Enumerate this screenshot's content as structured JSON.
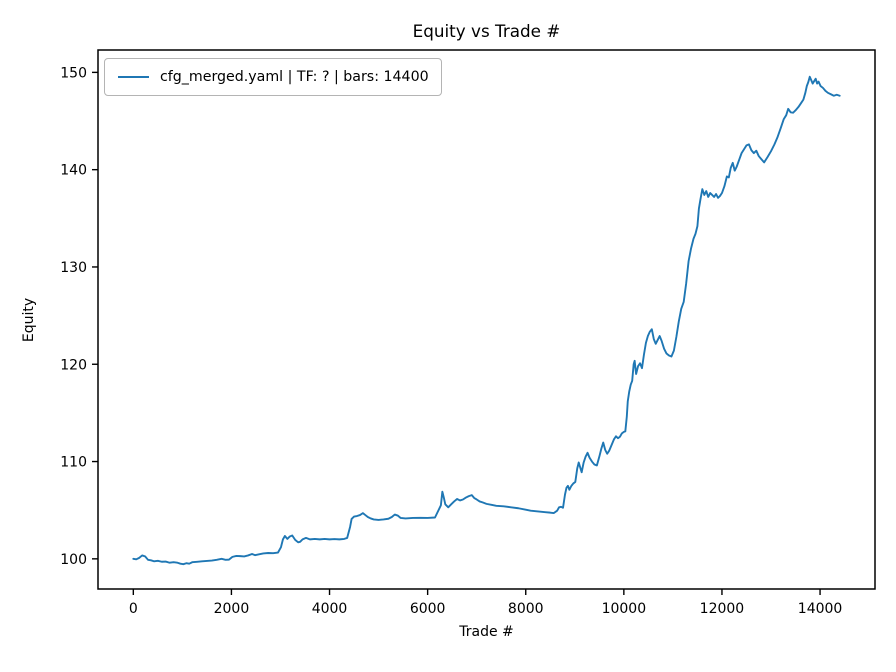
{
  "figure": {
    "background": "#ffffff"
  },
  "chart_data": {
    "type": "line",
    "title": "Equity vs Trade #",
    "xlabel": "Trade #",
    "ylabel": "Equity",
    "grid": false,
    "legend": {
      "position": "upper-left",
      "entries": [
        {
          "label": "cfg_merged.yaml | TF: ? | bars: 14400",
          "color": "#1f77b4"
        }
      ]
    },
    "xlim": [
      -720,
      15120
    ],
    "ylim": [
      96.9,
      152.3
    ],
    "x_ticks": [
      0,
      2000,
      4000,
      6000,
      8000,
      10000,
      12000,
      14000
    ],
    "y_ticks": [
      100,
      110,
      120,
      130,
      140,
      150
    ],
    "axis_color": "#000000",
    "series": [
      {
        "name": "cfg_merged.yaml | TF: ? | bars: 14400",
        "color": "#1f77b4",
        "line_width": 1.9,
        "points": [
          [
            0,
            100.0
          ],
          [
            60,
            99.95
          ],
          [
            120,
            100.1
          ],
          [
            180,
            100.35
          ],
          [
            240,
            100.25
          ],
          [
            300,
            99.9
          ],
          [
            360,
            99.85
          ],
          [
            420,
            99.75
          ],
          [
            500,
            99.8
          ],
          [
            580,
            99.7
          ],
          [
            660,
            99.72
          ],
          [
            740,
            99.6
          ],
          [
            820,
            99.65
          ],
          [
            900,
            99.6
          ],
          [
            960,
            99.5
          ],
          [
            1020,
            99.45
          ],
          [
            1080,
            99.55
          ],
          [
            1140,
            99.5
          ],
          [
            1200,
            99.65
          ],
          [
            1300,
            99.7
          ],
          [
            1400,
            99.75
          ],
          [
            1500,
            99.78
          ],
          [
            1600,
            99.82
          ],
          [
            1700,
            99.9
          ],
          [
            1800,
            100.0
          ],
          [
            1880,
            99.9
          ],
          [
            1950,
            99.92
          ],
          [
            2020,
            100.2
          ],
          [
            2100,
            100.3
          ],
          [
            2180,
            100.28
          ],
          [
            2260,
            100.25
          ],
          [
            2340,
            100.35
          ],
          [
            2420,
            100.5
          ],
          [
            2480,
            100.38
          ],
          [
            2550,
            100.45
          ],
          [
            2650,
            100.55
          ],
          [
            2750,
            100.6
          ],
          [
            2850,
            100.58
          ],
          [
            2950,
            100.65
          ],
          [
            3010,
            101.2
          ],
          [
            3050,
            102.0
          ],
          [
            3090,
            102.35
          ],
          [
            3140,
            102.05
          ],
          [
            3190,
            102.3
          ],
          [
            3240,
            102.4
          ],
          [
            3300,
            101.95
          ],
          [
            3360,
            101.7
          ],
          [
            3400,
            101.75
          ],
          [
            3450,
            102.0
          ],
          [
            3520,
            102.15
          ],
          [
            3600,
            102.0
          ],
          [
            3700,
            102.05
          ],
          [
            3800,
            102.0
          ],
          [
            3900,
            102.05
          ],
          [
            4000,
            102.0
          ],
          [
            4100,
            102.03
          ],
          [
            4200,
            102.0
          ],
          [
            4300,
            102.05
          ],
          [
            4360,
            102.15
          ],
          [
            4420,
            103.3
          ],
          [
            4450,
            104.1
          ],
          [
            4500,
            104.35
          ],
          [
            4560,
            104.4
          ],
          [
            4620,
            104.5
          ],
          [
            4680,
            104.7
          ],
          [
            4730,
            104.5
          ],
          [
            4780,
            104.3
          ],
          [
            4840,
            104.15
          ],
          [
            4900,
            104.05
          ],
          [
            5000,
            104.0
          ],
          [
            5100,
            104.05
          ],
          [
            5200,
            104.12
          ],
          [
            5270,
            104.3
          ],
          [
            5330,
            104.55
          ],
          [
            5390,
            104.45
          ],
          [
            5450,
            104.2
          ],
          [
            5550,
            104.15
          ],
          [
            5700,
            104.2
          ],
          [
            5850,
            104.22
          ],
          [
            6000,
            104.2
          ],
          [
            6150,
            104.25
          ],
          [
            6270,
            105.5
          ],
          [
            6300,
            106.9
          ],
          [
            6330,
            106.3
          ],
          [
            6360,
            105.6
          ],
          [
            6420,
            105.3
          ],
          [
            6480,
            105.6
          ],
          [
            6540,
            105.9
          ],
          [
            6600,
            106.15
          ],
          [
            6660,
            106.0
          ],
          [
            6720,
            106.1
          ],
          [
            6780,
            106.3
          ],
          [
            6840,
            106.45
          ],
          [
            6900,
            106.55
          ],
          [
            6950,
            106.25
          ],
          [
            7000,
            106.1
          ],
          [
            7060,
            105.9
          ],
          [
            7120,
            105.8
          ],
          [
            7200,
            105.65
          ],
          [
            7300,
            105.55
          ],
          [
            7400,
            105.45
          ],
          [
            7550,
            105.4
          ],
          [
            7700,
            105.3
          ],
          [
            7850,
            105.2
          ],
          [
            8000,
            105.05
          ],
          [
            8100,
            104.95
          ],
          [
            8200,
            104.9
          ],
          [
            8300,
            104.85
          ],
          [
            8400,
            104.8
          ],
          [
            8500,
            104.75
          ],
          [
            8570,
            104.7
          ],
          [
            8640,
            104.95
          ],
          [
            8680,
            105.3
          ],
          [
            8720,
            105.35
          ],
          [
            8760,
            105.25
          ],
          [
            8800,
            106.6
          ],
          [
            8830,
            107.3
          ],
          [
            8860,
            107.5
          ],
          [
            8890,
            107.1
          ],
          [
            8930,
            107.5
          ],
          [
            8970,
            107.75
          ],
          [
            9010,
            107.9
          ],
          [
            9050,
            109.3
          ],
          [
            9080,
            109.9
          ],
          [
            9110,
            109.4
          ],
          [
            9140,
            108.9
          ],
          [
            9180,
            109.9
          ],
          [
            9220,
            110.5
          ],
          [
            9260,
            110.9
          ],
          [
            9300,
            110.4
          ],
          [
            9350,
            110.0
          ],
          [
            9400,
            109.7
          ],
          [
            9450,
            109.6
          ],
          [
            9500,
            110.5
          ],
          [
            9540,
            111.3
          ],
          [
            9580,
            111.95
          ],
          [
            9620,
            111.2
          ],
          [
            9660,
            110.8
          ],
          [
            9700,
            111.1
          ],
          [
            9750,
            111.7
          ],
          [
            9800,
            112.3
          ],
          [
            9840,
            112.6
          ],
          [
            9880,
            112.4
          ],
          [
            9920,
            112.55
          ],
          [
            9960,
            112.9
          ],
          [
            10000,
            113.05
          ],
          [
            10030,
            113.1
          ],
          [
            10060,
            114.6
          ],
          [
            10080,
            116.2
          ],
          [
            10110,
            117.2
          ],
          [
            10140,
            117.9
          ],
          [
            10170,
            118.3
          ],
          [
            10200,
            120.0
          ],
          [
            10220,
            120.35
          ],
          [
            10250,
            119.0
          ],
          [
            10290,
            119.8
          ],
          [
            10330,
            120.1
          ],
          [
            10370,
            119.6
          ],
          [
            10410,
            121.0
          ],
          [
            10450,
            122.2
          ],
          [
            10490,
            122.9
          ],
          [
            10530,
            123.35
          ],
          [
            10570,
            123.6
          ],
          [
            10610,
            122.6
          ],
          [
            10650,
            122.1
          ],
          [
            10690,
            122.5
          ],
          [
            10730,
            122.9
          ],
          [
            10770,
            122.4
          ],
          [
            10820,
            121.6
          ],
          [
            10870,
            121.1
          ],
          [
            10920,
            120.9
          ],
          [
            10970,
            120.8
          ],
          [
            11020,
            121.4
          ],
          [
            11070,
            122.8
          ],
          [
            11120,
            124.4
          ],
          [
            11170,
            125.7
          ],
          [
            11220,
            126.4
          ],
          [
            11270,
            128.3
          ],
          [
            11320,
            130.6
          ],
          [
            11370,
            131.9
          ],
          [
            11420,
            132.9
          ],
          [
            11460,
            133.4
          ],
          [
            11500,
            134.2
          ],
          [
            11530,
            136.0
          ],
          [
            11560,
            136.9
          ],
          [
            11600,
            138.0
          ],
          [
            11640,
            137.4
          ],
          [
            11680,
            137.8
          ],
          [
            11720,
            137.2
          ],
          [
            11760,
            137.6
          ],
          [
            11800,
            137.4
          ],
          [
            11840,
            137.2
          ],
          [
            11880,
            137.5
          ],
          [
            11920,
            137.1
          ],
          [
            11960,
            137.3
          ],
          [
            12000,
            137.6
          ],
          [
            12050,
            138.3
          ],
          [
            12100,
            139.3
          ],
          [
            12140,
            139.2
          ],
          [
            12180,
            140.2
          ],
          [
            12220,
            140.7
          ],
          [
            12260,
            139.9
          ],
          [
            12300,
            140.3
          ],
          [
            12350,
            141.0
          ],
          [
            12400,
            141.7
          ],
          [
            12450,
            142.1
          ],
          [
            12500,
            142.5
          ],
          [
            12550,
            142.6
          ],
          [
            12600,
            142.0
          ],
          [
            12650,
            141.7
          ],
          [
            12700,
            141.95
          ],
          [
            12750,
            141.4
          ],
          [
            12800,
            141.1
          ],
          [
            12860,
            140.75
          ],
          [
            12930,
            141.3
          ],
          [
            13000,
            141.9
          ],
          [
            13070,
            142.6
          ],
          [
            13130,
            143.3
          ],
          [
            13200,
            144.3
          ],
          [
            13260,
            145.2
          ],
          [
            13310,
            145.6
          ],
          [
            13350,
            146.25
          ],
          [
            13400,
            145.9
          ],
          [
            13450,
            145.85
          ],
          [
            13500,
            146.1
          ],
          [
            13560,
            146.45
          ],
          [
            13620,
            146.9
          ],
          [
            13660,
            147.2
          ],
          [
            13700,
            147.9
          ],
          [
            13730,
            148.6
          ],
          [
            13760,
            149.0
          ],
          [
            13790,
            149.55
          ],
          [
            13820,
            149.2
          ],
          [
            13850,
            148.85
          ],
          [
            13880,
            149.1
          ],
          [
            13910,
            149.35
          ],
          [
            13940,
            148.85
          ],
          [
            13970,
            149.05
          ],
          [
            14010,
            148.6
          ],
          [
            14060,
            148.4
          ],
          [
            14110,
            148.1
          ],
          [
            14160,
            147.9
          ],
          [
            14220,
            147.75
          ],
          [
            14280,
            147.6
          ],
          [
            14340,
            147.7
          ],
          [
            14400,
            147.6
          ]
        ]
      }
    ]
  }
}
